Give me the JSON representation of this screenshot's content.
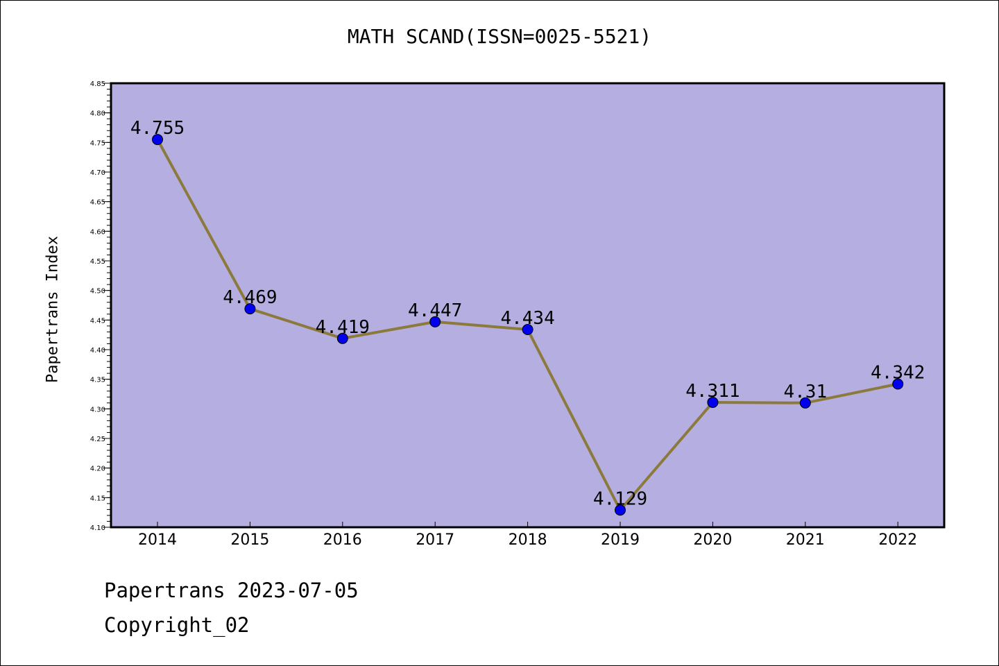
{
  "chart_data": {
    "type": "line",
    "title": "MATH SCAND(ISSN=0025-5521)",
    "xlabel": "",
    "ylabel": "Papertrans Index",
    "categories": [
      "2014",
      "2015",
      "2016",
      "2017",
      "2018",
      "2019",
      "2020",
      "2021",
      "2022"
    ],
    "series": [
      {
        "values": [
          4.755,
          4.469,
          4.419,
          4.447,
          4.434,
          4.129,
          4.311,
          4.31,
          4.342
        ],
        "labels": [
          "4.755",
          "4.469",
          "4.419",
          "4.447",
          "4.434",
          "4.129",
          "4.311",
          "4.31",
          "4.342"
        ]
      }
    ],
    "ylim": [
      4.1,
      4.85
    ],
    "yticks": [
      "4.10",
      "4.15",
      "4.20",
      "4.25",
      "4.30",
      "4.35",
      "4.40",
      "4.45",
      "4.50",
      "4.55",
      "4.60",
      "4.65",
      "4.70",
      "4.75",
      "4.80",
      "4.85"
    ],
    "grid": false,
    "legend": "none",
    "colors": {
      "plot_background": "#b5aee1",
      "line": "#8b7a3c",
      "marker": "#0000ee",
      "axis": "#000000"
    }
  },
  "footer": {
    "date_line": "Papertrans 2023-07-05",
    "copyright_line": "Copyright_02"
  }
}
